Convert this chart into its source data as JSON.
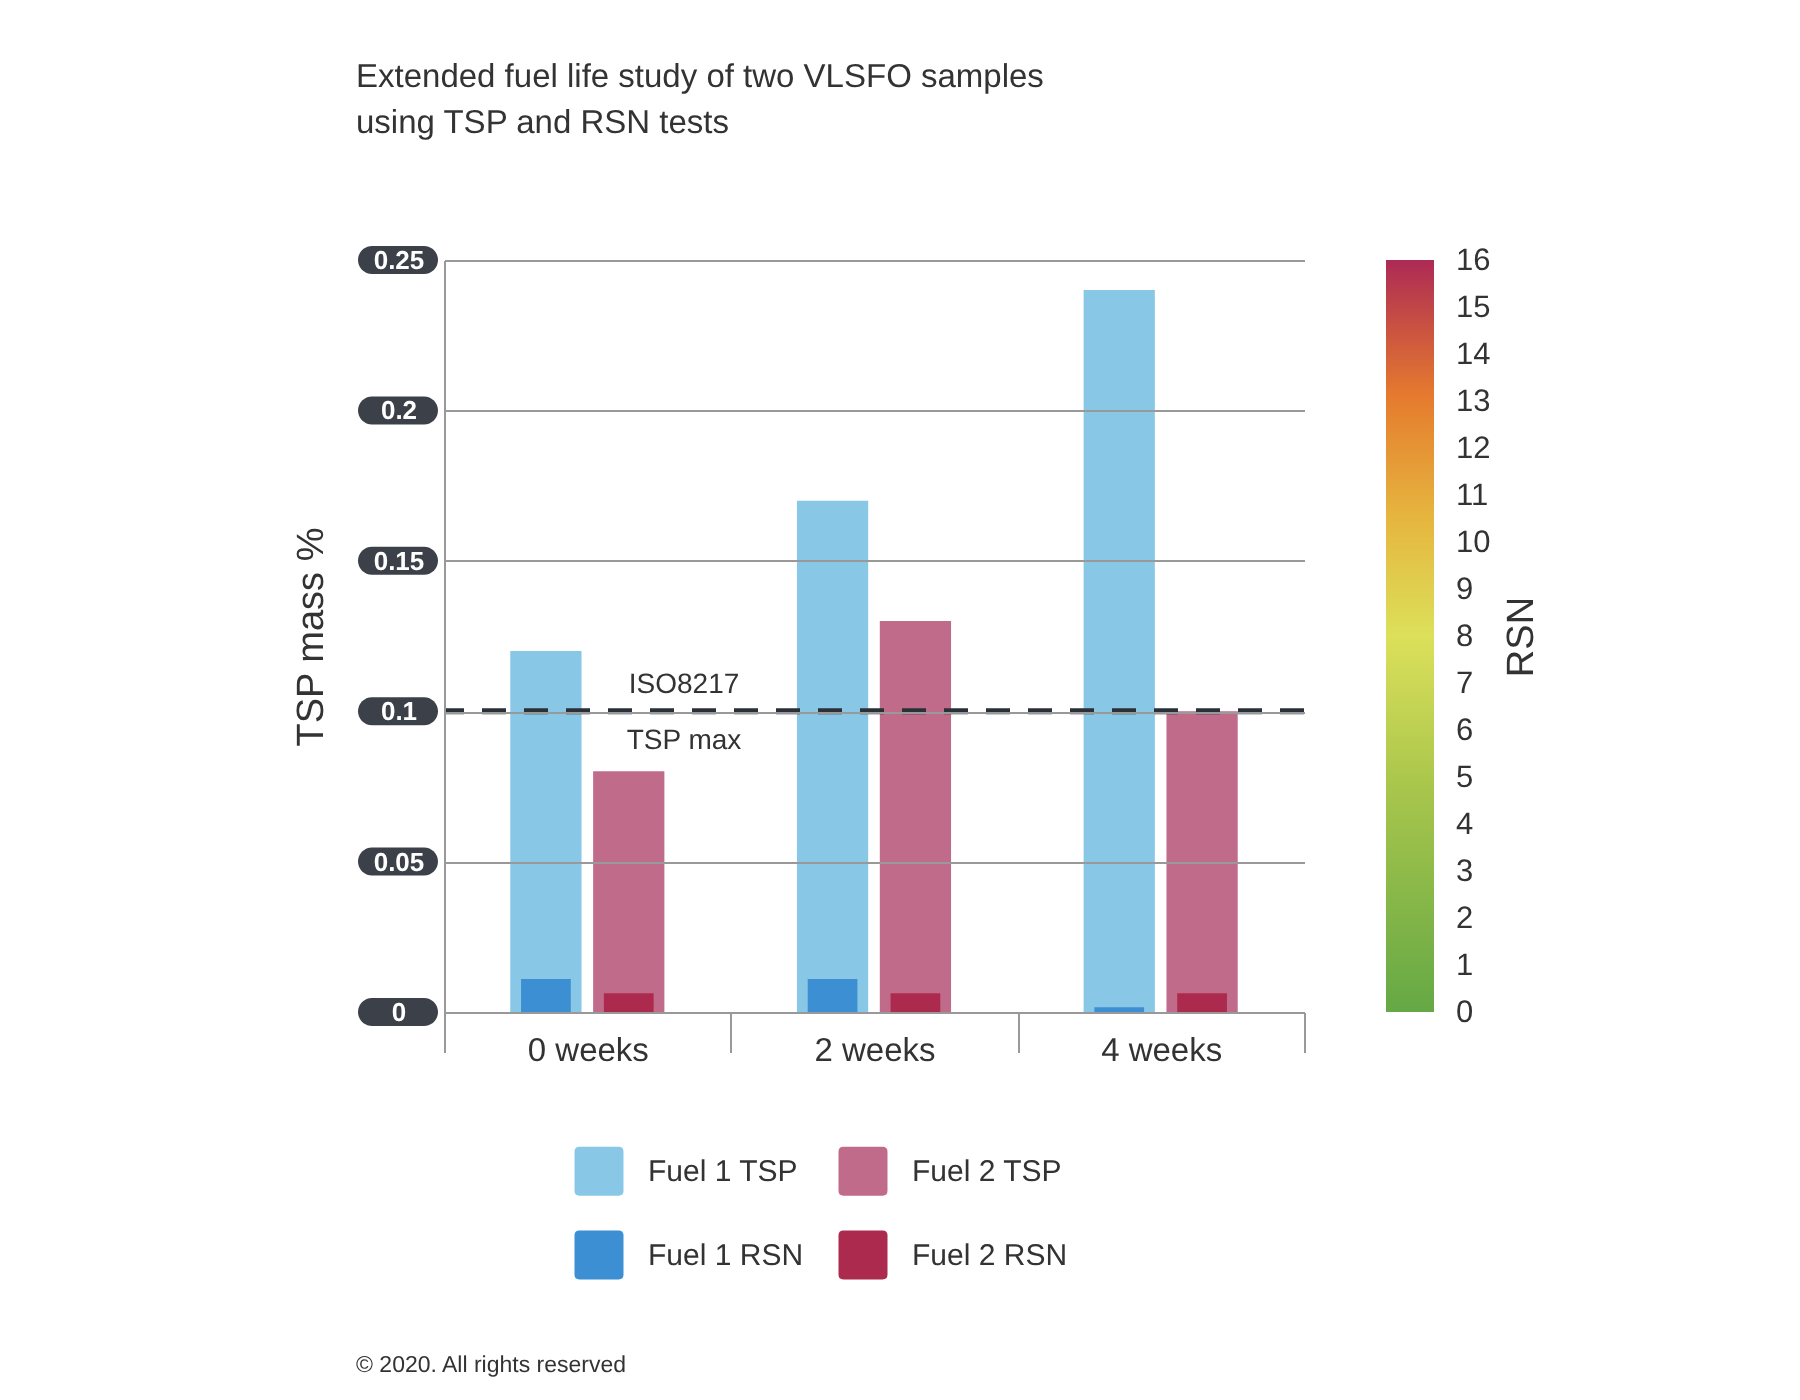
{
  "chart_data": {
    "type": "bar",
    "title": "Extended fuel life study of two VLSFO samples using TSP and RSN tests",
    "ylabel": "TSP mass %",
    "y2label": "RSN",
    "categories": [
      "0 weeks",
      "2 weeks",
      "4 weeks"
    ],
    "series": [
      {
        "name": "Fuel 1 TSP",
        "color": "#88c8e6",
        "values": [
          0.12,
          0.17,
          0.24
        ]
      },
      {
        "name": "Fuel 2 TSP",
        "color": "#c06b8a",
        "values": [
          0.08,
          0.13,
          0.1
        ]
      },
      {
        "name": "Fuel 1 RSN",
        "color": "#3c8fd3",
        "axis": "y2",
        "values": [
          0.7,
          0.7,
          0.1
        ]
      },
      {
        "name": "Fuel 2 RSN",
        "color": "#ac2a4e",
        "axis": "y2",
        "values": [
          0.4,
          0.4,
          0.4
        ]
      }
    ],
    "ylim": [
      0,
      0.25
    ],
    "yticks": [
      0,
      0.05,
      0.1,
      0.15,
      0.2,
      0.25
    ],
    "y2lim": [
      0,
      16
    ],
    "y2ticks": [
      0,
      1,
      2,
      3,
      4,
      5,
      6,
      7,
      8,
      9,
      10,
      11,
      12,
      13,
      14,
      15,
      16
    ],
    "ref_lines": [
      {
        "axis": "y",
        "value": 0.1,
        "label": "ISO8217 TSP max",
        "color": "#2a3038",
        "line_style": "dashed"
      }
    ],
    "grid": "y",
    "legend": "bottom",
    "annotations": [
      "© 2020. All rights reserved"
    ]
  }
}
